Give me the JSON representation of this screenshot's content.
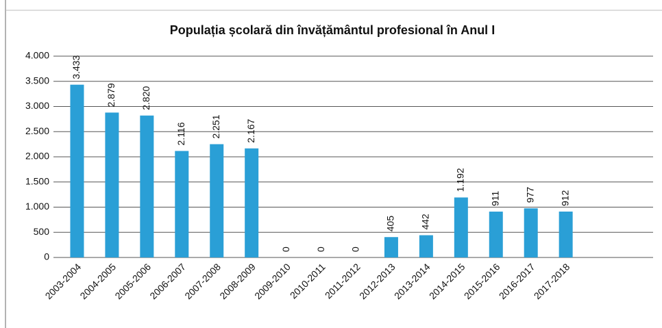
{
  "chart_data": {
    "type": "bar",
    "title": "Populația școlară din învățământul profesional  în Anul I",
    "categories": [
      "2003-2004",
      "2004-2005",
      "2005-2006",
      "2006-2007",
      "2007-2008",
      "2008-2009",
      "2009-2010",
      "2010-2011",
      "2011-2012",
      "2012-2013",
      "2013-2014",
      "2014-2015",
      "2015-2016",
      "2016-2017",
      "2017-2018",
      null,
      null
    ],
    "values": [
      3433,
      2879,
      2820,
      2116,
      2251,
      2167,
      0,
      0,
      0,
      405,
      442,
      1192,
      911,
      977,
      912,
      null,
      null
    ],
    "value_labels": [
      "3.433",
      "2.879",
      "2.820",
      "2.116",
      "2.251",
      "2.167",
      "0",
      "0",
      "0",
      "405",
      "442",
      "1.192",
      "911",
      "977",
      "912",
      null,
      null
    ],
    "color": "#2a9fd6",
    "ylim": [
      0,
      4000
    ],
    "yticks": [
      0,
      500,
      {
        "value": 1000,
        "label": "1.000"
      },
      {
        "value": 1500,
        "label": "1.500"
      },
      {
        "value": 2000,
        "label": "2.000"
      },
      {
        "value": 2500,
        "label": "2.500"
      },
      {
        "value": 3000,
        "label": "3.000"
      },
      {
        "value": 3500,
        "label": "3.500"
      },
      {
        "value": 4000,
        "label": "4.000"
      }
    ],
    "grid": true
  }
}
